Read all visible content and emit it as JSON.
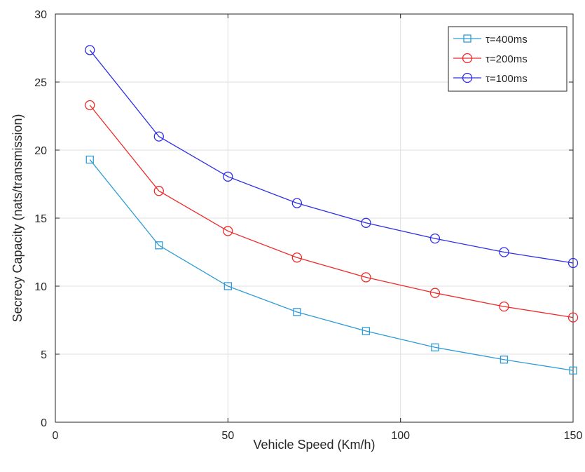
{
  "chart_data": {
    "type": "line",
    "title": "",
    "xlabel": "Vehicle Speed (Km/h)",
    "ylabel": "Secrecy Capacity (nats/transmission)",
    "xlim": [
      0,
      150
    ],
    "ylim": [
      0,
      30
    ],
    "xticks": [
      "0",
      "50",
      "100",
      "150"
    ],
    "yticks": [
      "0",
      "5",
      "10",
      "15",
      "20",
      "25",
      "30"
    ],
    "grid": true,
    "legend_position": "top-right",
    "x": [
      10,
      30,
      50,
      70,
      90,
      110,
      130,
      150
    ],
    "series": [
      {
        "name": "τ=400ms",
        "color": "#2e9bd6",
        "marker": "square",
        "values": [
          19.3,
          13.0,
          10.0,
          8.1,
          6.7,
          5.5,
          4.6,
          3.8
        ]
      },
      {
        "name": "τ=200ms",
        "color": "#ee2a2a",
        "marker": "circle",
        "values": [
          23.3,
          17.0,
          14.05,
          12.1,
          10.65,
          9.5,
          8.5,
          7.7
        ]
      },
      {
        "name": "τ=100ms",
        "color": "#2e2ee8",
        "marker": "circle",
        "values": [
          27.35,
          21.0,
          18.05,
          16.1,
          14.65,
          13.5,
          12.5,
          11.7
        ]
      }
    ]
  }
}
